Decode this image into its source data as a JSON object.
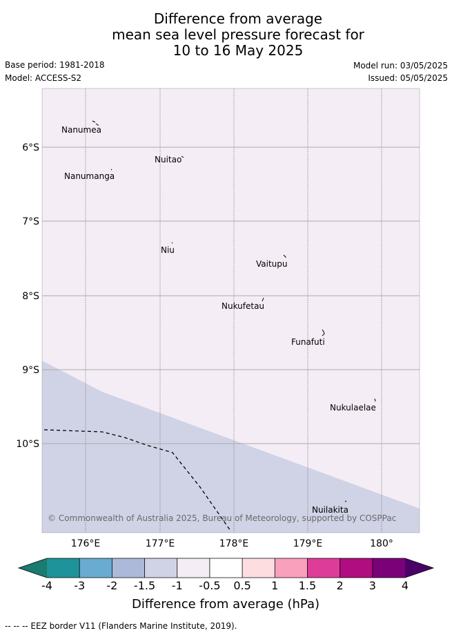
{
  "title": {
    "line1": "Difference from average",
    "line2": "mean sea level pressure forecast for",
    "line3": "10 to 16 May 2025"
  },
  "meta": {
    "base_period": "Base period: 1981-2018",
    "model": "Model: ACCESS-S2",
    "model_run": "Model run: 03/05/2025",
    "issued": "Issued: 05/05/2025"
  },
  "map": {
    "lon_labels": [
      "176°E",
      "177°E",
      "178°E",
      "179°E",
      "180°"
    ],
    "lat_labels": [
      "6°S",
      "7°S",
      "8°S",
      "9°S",
      "10°S"
    ],
    "places": [
      {
        "name": "Nanumea",
        "lon": 176.1,
        "lat": 5.68
      },
      {
        "name": "Nuitao",
        "lon": 177.3,
        "lat": 6.12
      },
      {
        "name": "Nanumanga",
        "lon": 176.32,
        "lat": 6.3
      },
      {
        "name": "Niu",
        "lon": 177.16,
        "lat": 7.3
      },
      {
        "name": "Vaitupu",
        "lon": 178.68,
        "lat": 7.48
      },
      {
        "name": "Nukufetau",
        "lon": 178.37,
        "lat": 8.03
      },
      {
        "name": "Funafuti",
        "lon": 179.2,
        "lat": 8.52
      },
      {
        "name": "Nukulaelae",
        "lon": 179.85,
        "lat": 9.38
      },
      {
        "name": "Nuilakita",
        "lon": 179.48,
        "lat": 10.75
      }
    ],
    "copyright": "© Commonwealth of Australia 2025, Bureau of Meteorology, supported by COSPPac",
    "background_color": "#f4edf5",
    "anomaly_color": "#d0d2e6"
  },
  "colorbar": {
    "label": "Difference from average (hPa)",
    "ticks": [
      "-4",
      "-3",
      "-2",
      "-1.5",
      "-1",
      "-0.5",
      "0.5",
      "1",
      "1.5",
      "2",
      "3",
      "4"
    ],
    "colors": [
      "#1f939a",
      "#6aabd2",
      "#adb9d8",
      "#d0d2e6",
      "#f4edf5",
      "#ffffff",
      "#fddde0",
      "#f9a0bc",
      "#de3c99",
      "#af0d80",
      "#7a0178"
    ],
    "under_color": "#1a7b70",
    "over_color": "#4b0068"
  },
  "footer": "-- -- -- EEZ border V11 (Flanders Marine Institute, 2019)."
}
